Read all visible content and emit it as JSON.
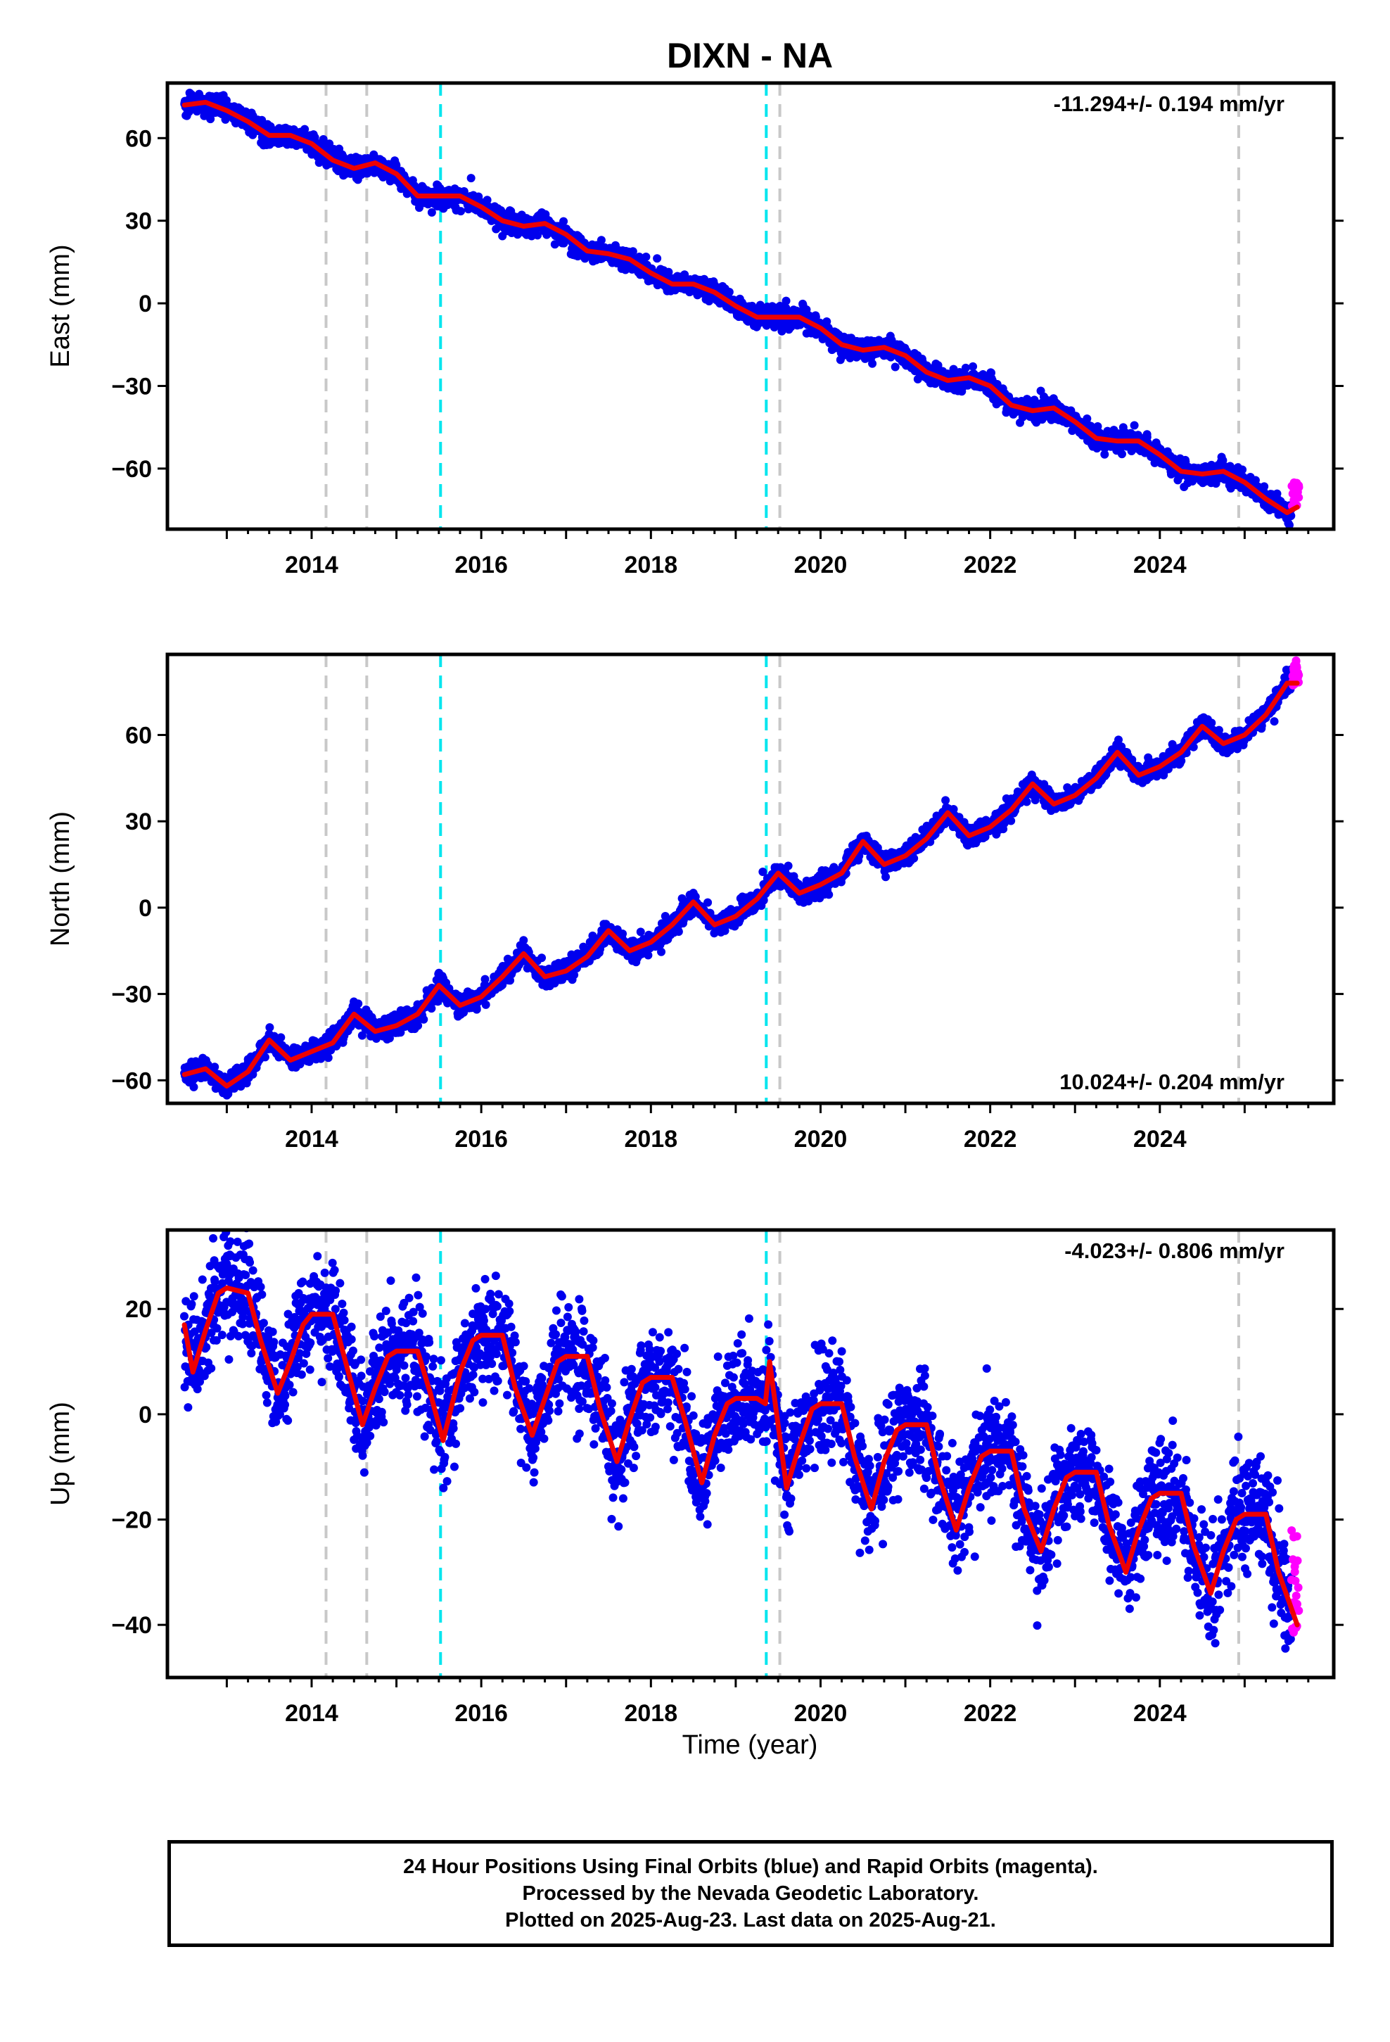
{
  "station_title": "DIXN - NA",
  "colors": {
    "final_orbits": "#0000ee",
    "rapid_orbits": "#ff00ff",
    "model_fit": "#ee0000",
    "equipment_change": "#c8c8c8",
    "earthquake": "#00e5ee"
  },
  "xlabel": "Time (year)",
  "footer": {
    "line1": "24 Hour Positions Using Final Orbits (blue) and Rapid Orbits (magenta).",
    "line2": "Processed by the Nevada Geodetic Laboratory.",
    "line3": "Plotted on 2025-Aug-23. Last data on 2025-Aug-21."
  },
  "chart_data": [
    {
      "type": "scatter",
      "panel": "east",
      "ylabel": "East (mm)",
      "rate_label": "-11.294+/- 0.194 mm/yr",
      "xlim": [
        2012.3,
        2026.05
      ],
      "ylim": [
        -82,
        80
      ],
      "xticks": [
        "2014",
        "2016",
        "2018",
        "2020",
        "2022",
        "2024"
      ],
      "yticks": [
        "60",
        "30",
        "0",
        "−30",
        "−60"
      ],
      "x_tick_values": [
        2014,
        2016,
        2018,
        2020,
        2022,
        2024
      ],
      "y_tick_values": [
        60,
        30,
        0,
        -30,
        -60
      ],
      "grey_dashed_lines": [
        2014.17,
        2014.65,
        2024.93
      ],
      "cyan_dashed_lines": [
        2015.52,
        2019.36
      ],
      "extra_grey_line": [
        2019.52
      ],
      "series_model": {
        "x": [
          2012.5,
          2012.75,
          2013.0,
          2013.25,
          2013.5,
          2013.75,
          2014.0,
          2014.25,
          2014.5,
          2014.75,
          2015.0,
          2015.25,
          2015.5,
          2015.75,
          2016.0,
          2016.25,
          2016.5,
          2016.75,
          2017.0,
          2017.25,
          2017.5,
          2017.75,
          2018.0,
          2018.25,
          2018.5,
          2018.75,
          2019.0,
          2019.25,
          2019.5,
          2019.75,
          2020.0,
          2020.25,
          2020.5,
          2020.75,
          2021.0,
          2021.25,
          2021.5,
          2021.75,
          2022.0,
          2022.25,
          2022.5,
          2022.75,
          2023.0,
          2023.25,
          2023.5,
          2023.75,
          2024.0,
          2024.25,
          2024.5,
          2024.75,
          2025.0,
          2025.25,
          2025.5,
          2025.62
        ],
        "y": [
          72,
          73,
          70,
          66,
          61,
          61,
          58,
          52,
          49,
          51,
          47,
          39,
          39,
          39,
          35,
          30,
          28,
          29,
          25,
          19,
          18,
          16,
          11,
          7,
          7,
          4,
          -1,
          -5,
          -5,
          -5,
          -9,
          -15,
          -17,
          -16,
          -19,
          -25,
          -28,
          -27,
          -30,
          -37,
          -39,
          -38,
          -43,
          -49,
          -50,
          -50,
          -55,
          -61,
          -62,
          -61,
          -65,
          -71,
          -76,
          -74
        ]
      },
      "scatter_noise_mm": 1.8,
      "rapid_x_range": [
        2025.55,
        2025.64
      ],
      "rapid_y_range": [
        -75,
        -65
      ]
    },
    {
      "type": "scatter",
      "panel": "north",
      "ylabel": "North (mm)",
      "rate_label": "10.024+/- 0.204 mm/yr",
      "xlim": [
        2012.3,
        2026.05
      ],
      "ylim": [
        -68,
        88
      ],
      "xticks": [
        "2014",
        "2016",
        "2018",
        "2020",
        "2022",
        "2024"
      ],
      "yticks": [
        "60",
        "30",
        "0",
        "−30",
        "−60"
      ],
      "x_tick_values": [
        2014,
        2016,
        2018,
        2020,
        2022,
        2024
      ],
      "y_tick_values": [
        60,
        30,
        0,
        -30,
        -60
      ],
      "grey_dashed_lines": [
        2014.17,
        2014.65,
        2024.93
      ],
      "cyan_dashed_lines": [
        2015.52,
        2019.36
      ],
      "extra_grey_line": [
        2019.52
      ],
      "series_model": {
        "x": [
          2012.5,
          2012.75,
          2013.0,
          2013.25,
          2013.5,
          2013.75,
          2014.0,
          2014.25,
          2014.5,
          2014.75,
          2015.0,
          2015.25,
          2015.5,
          2015.75,
          2016.0,
          2016.25,
          2016.5,
          2016.75,
          2017.0,
          2017.25,
          2017.5,
          2017.75,
          2018.0,
          2018.25,
          2018.5,
          2018.75,
          2019.0,
          2019.25,
          2019.5,
          2019.75,
          2020.0,
          2020.25,
          2020.5,
          2020.75,
          2021.0,
          2021.25,
          2021.5,
          2021.75,
          2022.0,
          2022.25,
          2022.5,
          2022.75,
          2023.0,
          2023.25,
          2023.5,
          2023.75,
          2024.0,
          2024.25,
          2024.5,
          2024.75,
          2025.0,
          2025.25,
          2025.5,
          2025.62
        ],
        "y": [
          -58,
          -56,
          -62,
          -57,
          -46,
          -53,
          -50,
          -47,
          -37,
          -43,
          -41,
          -37,
          -27,
          -34,
          -31,
          -24,
          -16,
          -24,
          -22,
          -17,
          -8,
          -15,
          -12,
          -6,
          2,
          -6,
          -3,
          3,
          12,
          5,
          8,
          12,
          23,
          15,
          18,
          24,
          33,
          25,
          28,
          34,
          43,
          36,
          39,
          45,
          54,
          46,
          49,
          54,
          63,
          57,
          60,
          67,
          78,
          78
        ]
      },
      "scatter_noise_mm": 1.8,
      "rapid_x_range": [
        2025.55,
        2025.64
      ],
      "rapid_y_range": [
        77,
        86
      ]
    },
    {
      "type": "scatter",
      "panel": "up",
      "ylabel": "Up (mm)",
      "rate_label": "-4.023+/- 0.806 mm/yr",
      "xlim": [
        2012.3,
        2026.05
      ],
      "ylim": [
        -50,
        35
      ],
      "xticks": [
        "2014",
        "2016",
        "2018",
        "2020",
        "2022",
        "2024"
      ],
      "yticks": [
        "20",
        "0",
        "−20",
        "−40"
      ],
      "x_tick_values": [
        2014,
        2016,
        2018,
        2020,
        2022,
        2024
      ],
      "y_tick_values": [
        20,
        0,
        -20,
        -40
      ],
      "grey_dashed_lines": [
        2014.17,
        2014.65,
        2024.93
      ],
      "cyan_dashed_lines": [
        2015.52,
        2019.36
      ],
      "extra_grey_line": [
        2019.52
      ],
      "series_model": {
        "x": [
          2012.5,
          2012.6,
          2012.75,
          2012.9,
          2013.0,
          2013.25,
          2013.4,
          2013.6,
          2013.75,
          2013.9,
          2014.0,
          2014.25,
          2014.4,
          2014.6,
          2014.75,
          2014.9,
          2015.0,
          2015.25,
          2015.4,
          2015.55,
          2015.75,
          2015.9,
          2016.0,
          2016.25,
          2016.4,
          2016.6,
          2016.75,
          2016.9,
          2017.0,
          2017.25,
          2017.4,
          2017.6,
          2017.75,
          2017.9,
          2018.0,
          2018.25,
          2018.4,
          2018.6,
          2018.75,
          2018.9,
          2019.0,
          2019.25,
          2019.35,
          2019.4,
          2019.6,
          2019.75,
          2019.9,
          2020.0,
          2020.25,
          2020.4,
          2020.6,
          2020.75,
          2020.9,
          2021.0,
          2021.25,
          2021.4,
          2021.6,
          2021.75,
          2021.9,
          2022.0,
          2022.25,
          2022.4,
          2022.6,
          2022.75,
          2022.9,
          2023.0,
          2023.25,
          2023.4,
          2023.6,
          2023.75,
          2023.9,
          2024.0,
          2024.25,
          2024.4,
          2024.6,
          2024.75,
          2024.9,
          2025.0,
          2025.25,
          2025.4,
          2025.62
        ],
        "y": [
          17,
          8,
          16,
          23,
          24,
          23,
          14,
          4,
          10,
          17,
          19,
          19,
          10,
          -2,
          5,
          11,
          12,
          12,
          4,
          -5,
          8,
          14,
          15,
          15,
          5,
          -4,
          3,
          10,
          11,
          11,
          1,
          -9,
          -1,
          6,
          7,
          7,
          -1,
          -13,
          -4,
          2,
          3,
          3,
          2,
          10,
          -14,
          -6,
          1,
          2,
          2,
          -8,
          -18,
          -9,
          -3,
          -2,
          -2,
          -12,
          -22,
          -14,
          -8,
          -7,
          -7,
          -18,
          -26,
          -18,
          -12,
          -11,
          -11,
          -21,
          -30,
          -22,
          -16,
          -15,
          -15,
          -25,
          -34,
          -26,
          -20,
          -19,
          -19,
          -30,
          -40
        ]
      },
      "scatter_noise_mm": 5.0,
      "rapid_x_range": [
        2025.55,
        2025.64
      ],
      "rapid_y_range": [
        -42,
        -22
      ]
    }
  ]
}
